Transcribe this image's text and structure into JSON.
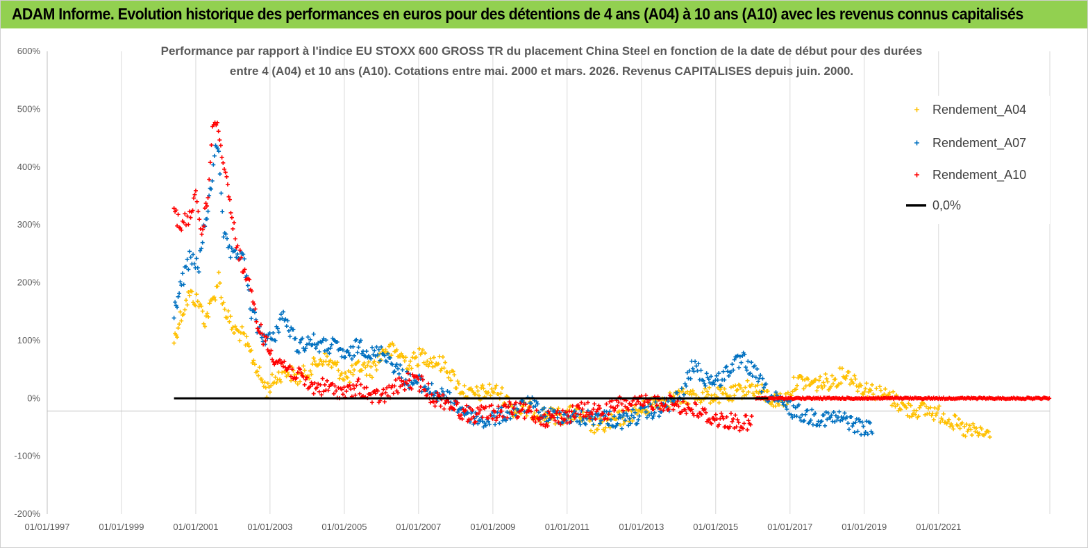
{
  "banner": {
    "title": "ADAM Informe. Evolution historique des performances en euros pour des détentions de 4 ans (A04) à 10 ans (A10) avec les revenus connus capitalisés",
    "color": "#92d050"
  },
  "chart_data": {
    "type": "scatter",
    "title_lines": [
      "Performance par rapport à l'indice EU STOXX 600 GROSS TR  du placement China Steel  en fonction de la date de début pour des durées",
      "entre 4 (A04) et 10 ans (A10).  Cotations entre mai. 2000 et mars. 2026. Revenus CAPITALISES depuis juin. 2000."
    ],
    "xlabel": "",
    "ylabel": "",
    "x_range": [
      "1997-01-01",
      "2023-12-31"
    ],
    "y_range": [
      -200,
      600
    ],
    "y_ticks": [
      "600%",
      "500%",
      "400%",
      "300%",
      "200%",
      "100%",
      "0%",
      "-100%",
      "-200%"
    ],
    "x_ticks": [
      "01/01/1997",
      "01/01/1999",
      "01/01/2001",
      "01/01/2003",
      "01/01/2005",
      "01/01/2007",
      "01/01/2009",
      "01/01/2011",
      "01/01/2013",
      "01/01/2015",
      "01/01/2017",
      "01/01/2019",
      "01/01/2021"
    ],
    "grid": "vertical",
    "legend_position": "top-right",
    "series": [
      {
        "name": "Rendement_A04",
        "color": "#ffc000",
        "marker": "+",
        "points": [
          [
            "2000-06-01",
            100
          ],
          [
            "2000-08-01",
            140
          ],
          [
            "2000-11-01",
            180
          ],
          [
            "2001-02-01",
            165
          ],
          [
            "2001-04-01",
            135
          ],
          [
            "2001-07-01",
            175
          ],
          [
            "2001-08-15",
            210
          ],
          [
            "2001-10-01",
            160
          ],
          [
            "2002-01-01",
            120
          ],
          [
            "2002-04-01",
            110
          ],
          [
            "2002-07-01",
            75
          ],
          [
            "2002-10-01",
            35
          ],
          [
            "2002-12-01",
            15
          ],
          [
            "2003-02-01",
            30
          ],
          [
            "2003-06-01",
            50
          ],
          [
            "2003-10-01",
            35
          ],
          [
            "2004-02-01",
            50
          ],
          [
            "2004-06-01",
            70
          ],
          [
            "2004-10-01",
            55
          ],
          [
            "2005-02-01",
            35
          ],
          [
            "2005-06-01",
            55
          ],
          [
            "2005-10-01",
            50
          ],
          [
            "2006-02-01",
            85
          ],
          [
            "2006-06-01",
            80
          ],
          [
            "2006-10-01",
            60
          ],
          [
            "2007-02-01",
            75
          ],
          [
            "2007-06-01",
            65
          ],
          [
            "2007-10-01",
            55
          ],
          [
            "2008-02-01",
            20
          ],
          [
            "2008-06-01",
            5
          ],
          [
            "2008-10-01",
            10
          ],
          [
            "2009-01-01",
            15
          ],
          [
            "2009-04-01",
            5
          ],
          [
            "2009-08-01",
            -20
          ],
          [
            "2010-01-01",
            -20
          ],
          [
            "2010-06-01",
            -30
          ],
          [
            "2010-12-01",
            -30
          ],
          [
            "2011-04-01",
            -25
          ],
          [
            "2011-08-01",
            -45
          ],
          [
            "2011-12-01",
            -50
          ],
          [
            "2012-04-01",
            -40
          ],
          [
            "2012-08-01",
            -30
          ],
          [
            "2013-01-01",
            -20
          ],
          [
            "2013-06-01",
            -5
          ],
          [
            "2013-12-01",
            0
          ],
          [
            "2014-06-01",
            5
          ],
          [
            "2014-12-01",
            5
          ],
          [
            "2015-06-01",
            5
          ],
          [
            "2015-12-01",
            20
          ],
          [
            "2016-04-01",
            10
          ],
          [
            "2016-08-01",
            -5
          ],
          [
            "2016-12-01",
            0
          ],
          [
            "2017-03-01",
            30
          ],
          [
            "2017-09-01",
            25
          ],
          [
            "2018-03-01",
            30
          ],
          [
            "2018-07-01",
            45
          ],
          [
            "2018-12-01",
            20
          ],
          [
            "2019-05-01",
            10
          ],
          [
            "2019-10-01",
            0
          ],
          [
            "2020-03-01",
            -20
          ],
          [
            "2020-09-01",
            -20
          ],
          [
            "2021-03-01",
            -30
          ],
          [
            "2021-09-01",
            -55
          ],
          [
            "2022-03-01",
            -60
          ],
          [
            "2022-06-01",
            -65
          ]
        ]
      },
      {
        "name": "Rendement_A07",
        "color": "#0070c0",
        "marker": "+",
        "points": [
          [
            "2000-06-01",
            150
          ],
          [
            "2000-08-01",
            190
          ],
          [
            "2000-11-01",
            240
          ],
          [
            "2001-02-01",
            230
          ],
          [
            "2001-04-01",
            300
          ],
          [
            "2001-06-01",
            360
          ],
          [
            "2001-07-15",
            440
          ],
          [
            "2001-08-15",
            430
          ],
          [
            "2001-10-01",
            280
          ],
          [
            "2002-01-01",
            240
          ],
          [
            "2002-04-01",
            255
          ],
          [
            "2002-07-01",
            150
          ],
          [
            "2002-10-01",
            110
          ],
          [
            "2003-02-01",
            100
          ],
          [
            "2003-05-01",
            145
          ],
          [
            "2003-10-01",
            90
          ],
          [
            "2004-02-01",
            100
          ],
          [
            "2004-06-01",
            90
          ],
          [
            "2004-10-01",
            90
          ],
          [
            "2005-02-01",
            70
          ],
          [
            "2005-06-01",
            95
          ],
          [
            "2005-10-01",
            75
          ],
          [
            "2006-02-01",
            80
          ],
          [
            "2006-06-01",
            50
          ],
          [
            "2006-10-01",
            30
          ],
          [
            "2007-02-01",
            25
          ],
          [
            "2007-06-01",
            10
          ],
          [
            "2007-10-01",
            0
          ],
          [
            "2008-02-01",
            -15
          ],
          [
            "2008-06-01",
            -30
          ],
          [
            "2008-10-01",
            -40
          ],
          [
            "2009-01-01",
            -35
          ],
          [
            "2009-06-01",
            -25
          ],
          [
            "2010-01-01",
            -10
          ],
          [
            "2010-06-01",
            -30
          ],
          [
            "2010-12-01",
            -30
          ],
          [
            "2011-06-01",
            -35
          ],
          [
            "2011-12-01",
            -30
          ],
          [
            "2012-06-01",
            -40
          ],
          [
            "2012-12-01",
            -30
          ],
          [
            "2013-06-01",
            -20
          ],
          [
            "2013-10-01",
            -10
          ],
          [
            "2014-02-01",
            5
          ],
          [
            "2014-06-01",
            60
          ],
          [
            "2014-09-01",
            35
          ],
          [
            "2015-02-01",
            30
          ],
          [
            "2015-06-01",
            55
          ],
          [
            "2015-10-01",
            65
          ],
          [
            "2016-02-01",
            40
          ],
          [
            "2016-06-01",
            5
          ],
          [
            "2016-12-01",
            -15
          ],
          [
            "2017-06-01",
            -30
          ],
          [
            "2018-01-01",
            -35
          ],
          [
            "2018-06-01",
            -35
          ],
          [
            "2018-12-01",
            -50
          ],
          [
            "2019-04-01",
            -55
          ]
        ]
      },
      {
        "name": "Rendement_A10",
        "color": "#ff0000",
        "marker": "+",
        "points": [
          [
            "2000-06-01",
            325
          ],
          [
            "2000-08-01",
            300
          ],
          [
            "2000-11-01",
            310
          ],
          [
            "2001-01-01",
            360
          ],
          [
            "2001-03-01",
            280
          ],
          [
            "2001-05-01",
            350
          ],
          [
            "2001-06-15",
            470
          ],
          [
            "2001-08-01",
            480
          ],
          [
            "2001-09-15",
            420
          ],
          [
            "2001-11-01",
            380
          ],
          [
            "2002-01-01",
            300
          ],
          [
            "2002-03-01",
            250
          ],
          [
            "2002-06-01",
            200
          ],
          [
            "2002-09-01",
            130
          ],
          [
            "2003-01-01",
            80
          ],
          [
            "2003-06-01",
            55
          ],
          [
            "2003-10-01",
            40
          ],
          [
            "2004-02-01",
            20
          ],
          [
            "2004-06-01",
            20
          ],
          [
            "2004-10-01",
            15
          ],
          [
            "2005-02-01",
            10
          ],
          [
            "2005-06-01",
            20
          ],
          [
            "2005-10-01",
            0
          ],
          [
            "2006-02-01",
            5
          ],
          [
            "2006-06-01",
            20
          ],
          [
            "2006-10-01",
            30
          ],
          [
            "2007-02-01",
            25
          ],
          [
            "2007-06-01",
            0
          ],
          [
            "2007-10-01",
            -5
          ],
          [
            "2008-02-01",
            -20
          ],
          [
            "2008-06-01",
            -30
          ],
          [
            "2008-10-01",
            -25
          ],
          [
            "2009-02-01",
            -25
          ],
          [
            "2009-06-01",
            -20
          ],
          [
            "2010-01-01",
            -25
          ],
          [
            "2010-06-01",
            -35
          ],
          [
            "2011-01-01",
            -30
          ],
          [
            "2011-06-01",
            -20
          ],
          [
            "2012-01-01",
            -25
          ],
          [
            "2012-06-01",
            -10
          ],
          [
            "2013-01-01",
            -10
          ],
          [
            "2013-06-01",
            -5
          ],
          [
            "2013-12-01",
            -10
          ],
          [
            "2014-06-01",
            -20
          ],
          [
            "2014-12-01",
            -35
          ],
          [
            "2015-06-01",
            -40
          ],
          [
            "2016-01-01",
            -45
          ]
        ],
        "flat_segment": {
          "from": "2016-02-01",
          "to": "2023-12-31",
          "value": 0
        }
      },
      {
        "name": "0,0%",
        "color": "#000000",
        "marker": "line",
        "points": [
          [
            "2000-06-01",
            0
          ],
          [
            "2016-06-01",
            0
          ]
        ]
      }
    ]
  }
}
